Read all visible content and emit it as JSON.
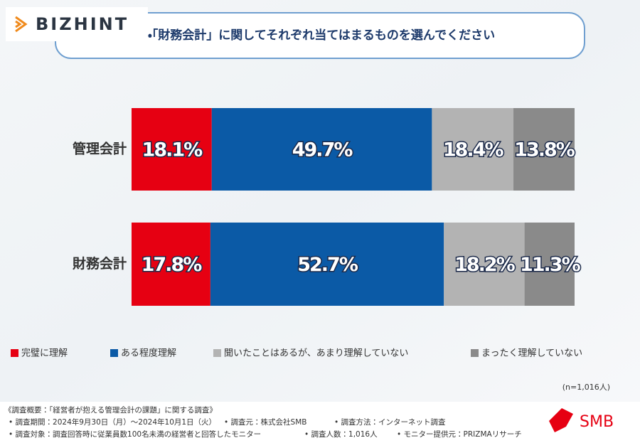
{
  "logo": "BIZHINT",
  "brand": "SMB",
  "chart_data": {
    "type": "bar",
    "orientation": "horizontal",
    "stacked": true,
    "title": "・「財務会計」に関してそれぞれ当てはまるものを選んでください",
    "categories": [
      "管理会計",
      "財務会計"
    ],
    "xlim": [
      0,
      100
    ],
    "series": [
      {
        "name": "完璧に理解",
        "color": "#e60012",
        "values": [
          18.1,
          17.8
        ],
        "value_labels": [
          "18.1%",
          "17.8%"
        ]
      },
      {
        "name": "ある程度理解",
        "color": "#0b5aa6",
        "values": [
          49.7,
          52.7
        ],
        "value_labels": [
          "49.7%",
          "52.7%"
        ]
      },
      {
        "name": "聞いたことはあるが、あまり理解していない",
        "color": "#b3b3b3",
        "values": [
          18.4,
          18.2
        ],
        "value_labels": [
          "18.4%",
          "18.2%"
        ]
      },
      {
        "name": "まったく理解していない",
        "color": "#8a8a8a",
        "values": [
          13.8,
          11.3
        ],
        "value_labels": [
          "13.8%",
          "11.3%"
        ]
      }
    ],
    "note": "(n=1,016人)"
  },
  "footnotes": {
    "heading": "《調査概要：「経営者が抱える管理会計の課題」に関する調査》",
    "items": [
      "• 調査期間：2024年9月30日（月）～2024年10月1日（火）",
      "• 調査元：株式会社SMB",
      "• 調査方法：インターネット調査",
      "• 調査対象：調査回答時に従業員数100名未満の経営者と回答したモニター",
      "• 調査人数：1,016人",
      "• モニター提供元：PRIZMAリサーチ"
    ]
  }
}
